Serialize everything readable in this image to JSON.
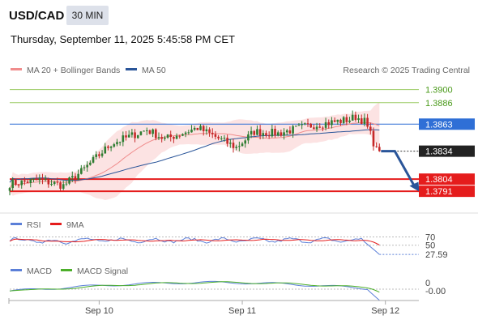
{
  "header": {
    "symbol": "USD/CAD",
    "timeframe": "30 MIN",
    "datetime": "Thursday, September 11, 2025 5:45:58 PM CET"
  },
  "legend": {
    "ma20_bb": "MA 20 + Bollinger Bands",
    "ma50": "MA 50",
    "credit": "Research © 2025 Trading Central"
  },
  "colors": {
    "bull": "#2e7d32",
    "bear": "#c62828",
    "ma20": "#f08c8c",
    "ma50": "#2a5599",
    "bb_fill": "#fcdede",
    "resistance": "#9ccc65",
    "pivot": "#2f6fd6",
    "support": "#e51c1c",
    "arrow": "#2a5599",
    "rsi": "#5b7fd8",
    "rsi_ma": "#e51c1c",
    "macd": "#5b7fd8",
    "macd_signal": "#4caf2a"
  },
  "chart_data": [
    {
      "type": "candlestick",
      "yrange": [
        1.3772,
        1.3911
      ],
      "xticks": [
        {
          "label": "Sep 10",
          "index": 30
        },
        {
          "label": "Sep 11",
          "index": 78
        },
        {
          "label": "Sep 12",
          "index": 126
        }
      ],
      "levels": [
        {
          "value": 1.39,
          "label": "1.3900",
          "kind": "resistance"
        },
        {
          "value": 1.3886,
          "label": "1.3886",
          "kind": "resistance"
        },
        {
          "value": 1.3863,
          "label": "1.3863",
          "kind": "pivot"
        },
        {
          "value": 1.3834,
          "label": "1.3834",
          "kind": "last"
        },
        {
          "value": 1.3804,
          "label": "1.3804",
          "kind": "support"
        },
        {
          "value": 1.3791,
          "label": "1.3791",
          "kind": "support"
        }
      ],
      "forecast_arrow": {
        "from_index": 124,
        "from_value": 1.3834,
        "to_index": 136,
        "to_value": 1.3795
      },
      "waypoints": [
        [
          0,
          1.3799
        ],
        [
          10,
          1.3803
        ],
        [
          18,
          1.3797
        ],
        [
          24,
          1.3812
        ],
        [
          34,
          1.3842
        ],
        [
          46,
          1.3857
        ],
        [
          52,
          1.3847
        ],
        [
          63,
          1.3859
        ],
        [
          76,
          1.3838
        ],
        [
          82,
          1.3855
        ],
        [
          90,
          1.3853
        ],
        [
          100,
          1.3861
        ],
        [
          110,
          1.3866
        ],
        [
          114,
          1.3868
        ],
        [
          116,
          1.3871
        ],
        [
          119,
          1.3866
        ],
        [
          121,
          1.3852
        ],
        [
          123,
          1.3835
        ],
        [
          124,
          1.3834
        ]
      ]
    },
    {
      "type": "line",
      "title": "RSI",
      "legend": [
        "RSI",
        "9MA"
      ],
      "levels": [
        {
          "value": 70,
          "label": "70"
        },
        {
          "value": 50,
          "label": "50"
        }
      ],
      "last": {
        "value": 27.59,
        "label": "27.59"
      },
      "yrange": [
        20,
        75
      ]
    },
    {
      "type": "line",
      "title": "MACD",
      "legend": [
        "MACD",
        "MACD Signal"
      ],
      "levels": [
        {
          "value": 0,
          "label": "0"
        }
      ],
      "last": {
        "value": -0.0,
        "label": "-0.00"
      },
      "yrange": [
        -0.0012,
        0.0012
      ]
    }
  ]
}
